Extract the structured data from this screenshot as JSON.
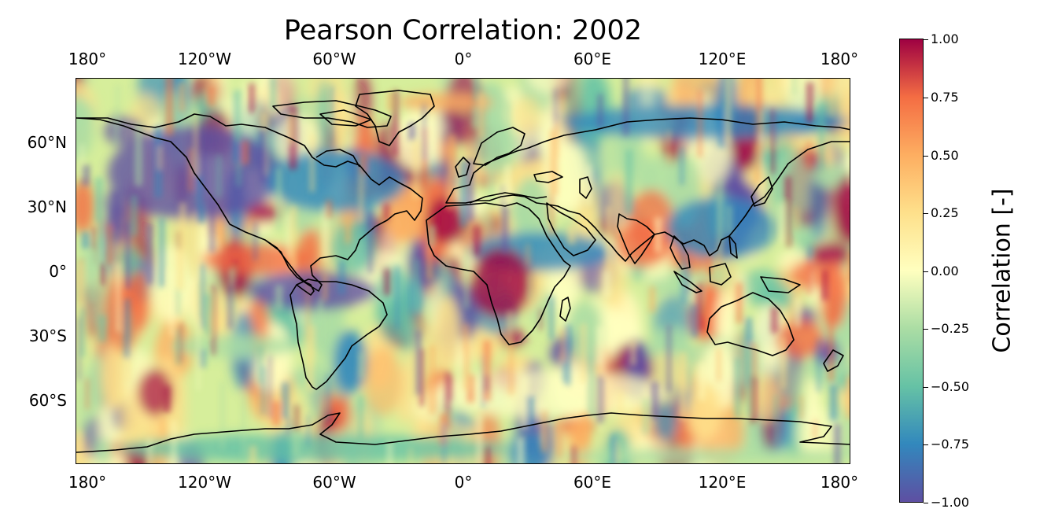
{
  "title": "Pearson Correlation: 2002",
  "map": {
    "projection": "PlateCarree",
    "colormap": "Spectral",
    "coastlines": true,
    "colors": {
      "neg_strong": "#5e4fa2",
      "neg": "#3288bd",
      "neg_mid": "#66c2a5",
      "neg_weak": "#abdda4",
      "zero": "#ffffbf",
      "pos_weak": "#fee08b",
      "pos_mid": "#fdae61",
      "pos": "#f46d43",
      "pos_strong": "#9e0142"
    }
  },
  "lon_ticks_top": [
    "180°",
    "120°W",
    "60°W",
    "0°",
    "60°E",
    "120°E",
    "180°"
  ],
  "lon_ticks_bottom": [
    "180°",
    "120°W",
    "60°W",
    "0°",
    "60°E",
    "120°E",
    "180°"
  ],
  "lat_ticks": [
    "60°N",
    "30°N",
    "0°",
    "30°S",
    "60°S"
  ],
  "colorbar": {
    "label": "Correlation [-]",
    "ticks": [
      "1.00",
      "0.75",
      "0.50",
      "0.25",
      "0.00",
      "−0.25",
      "−0.50",
      "−0.75",
      "−1.00"
    ],
    "range": [
      -1.0,
      1.0
    ]
  },
  "chart_data": {
    "type": "heatmap",
    "title": "Pearson Correlation: 2002",
    "variable": "Correlation [-]",
    "vmin": -1.0,
    "vmax": 1.0,
    "xlim": [
      -180,
      180
    ],
    "ylim": [
      -90,
      90
    ]
  }
}
